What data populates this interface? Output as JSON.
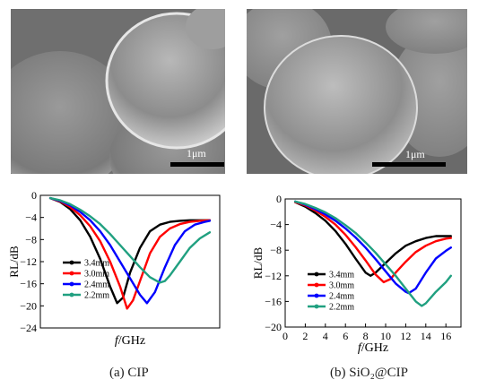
{
  "panels": [
    {
      "caption": "(a) CIP",
      "scale_label": "1μm"
    },
    {
      "caption": "(b) SiO₂@CIP",
      "scale_label": "1μm"
    }
  ],
  "chart_data": [
    {
      "type": "line",
      "title": "",
      "xlabel": "f/GHz",
      "ylabel": "RL/dB",
      "xlim": [
        0,
        18
      ],
      "ylim": [
        -24,
        0
      ],
      "xticks": [],
      "yticks": [
        0,
        -4,
        -8,
        -12,
        -16,
        -20,
        -24
      ],
      "grid": false,
      "legend_position": "lower-left",
      "series": [
        {
          "name": "3.4mm",
          "color": "#000000",
          "x": [
            1,
            2,
            3,
            4,
            5,
            6,
            7,
            7.7,
            8.3,
            9,
            10,
            11,
            12,
            13,
            14,
            15,
            16,
            17
          ],
          "y": [
            -0.5,
            -1.2,
            -2.5,
            -4.5,
            -7.5,
            -11.5,
            -16.5,
            -19.5,
            -18.5,
            -14,
            -9.5,
            -6.5,
            -5.3,
            -4.8,
            -4.6,
            -4.5,
            -4.5,
            -4.5
          ]
        },
        {
          "name": "3.0mm",
          "color": "#ff0000",
          "x": [
            1,
            2,
            3,
            4,
            5,
            6,
            7,
            8,
            8.7,
            9.3,
            10,
            11,
            12,
            13,
            14,
            15,
            16,
            17
          ],
          "y": [
            -0.5,
            -1.1,
            -2.1,
            -3.6,
            -5.6,
            -8.3,
            -12,
            -16.5,
            -20.5,
            -19,
            -15.5,
            -10.5,
            -7.5,
            -6,
            -5.2,
            -4.8,
            -4.6,
            -4.5
          ]
        },
        {
          "name": "2.4mm",
          "color": "#0000ff",
          "x": [
            1,
            2,
            3,
            4,
            5,
            6,
            7,
            8,
            9,
            10,
            10.7,
            11.5,
            12.5,
            13.5,
            14.5,
            15.5,
            16.5,
            17
          ],
          "y": [
            -0.5,
            -1,
            -1.8,
            -3,
            -4.5,
            -6.5,
            -9,
            -12,
            -15,
            -18,
            -19.5,
            -17.5,
            -13,
            -9,
            -6.5,
            -5.3,
            -4.8,
            -4.6
          ]
        },
        {
          "name": "2.2mm",
          "color": "#20a080",
          "x": [
            1,
            2,
            3,
            4,
            5,
            6,
            7,
            8,
            9,
            10,
            11,
            12,
            12.5,
            13,
            14,
            15,
            16,
            17
          ],
          "y": [
            -0.5,
            -0.9,
            -1.6,
            -2.6,
            -3.8,
            -5.2,
            -7,
            -9,
            -11,
            -13,
            -14.8,
            -15.8,
            -15.5,
            -14.5,
            -12,
            -9.5,
            -7.8,
            -6.7
          ]
        }
      ]
    },
    {
      "type": "line",
      "title": "",
      "xlabel": "f/GHz",
      "ylabel": "RL/dB",
      "xlim": [
        0,
        17.5
      ],
      "ylim": [
        -20,
        0
      ],
      "xticks": [
        0,
        2,
        4,
        6,
        8,
        10,
        12,
        14,
        16
      ],
      "yticks": [
        0,
        -4,
        -8,
        -12,
        -16,
        -20
      ],
      "grid": false,
      "legend_position": "lower-left",
      "series": [
        {
          "name": "3.4mm",
          "color": "#000000",
          "x": [
            1,
            2,
            3,
            4,
            5,
            6,
            7,
            8,
            8.5,
            9,
            10,
            11,
            12,
            13,
            14,
            15,
            16,
            16.5
          ],
          "y": [
            -0.5,
            -1.2,
            -2.2,
            -3.4,
            -5,
            -7,
            -9.3,
            -11.5,
            -12,
            -11.5,
            -10,
            -8.5,
            -7.3,
            -6.6,
            -6.1,
            -5.8,
            -5.8,
            -5.8
          ]
        },
        {
          "name": "3.0mm",
          "color": "#ff0000",
          "x": [
            1,
            2,
            3,
            4,
            5,
            6,
            7,
            8,
            9,
            9.8,
            10.5,
            11,
            12,
            13,
            14,
            15,
            16,
            16.5
          ],
          "y": [
            -0.5,
            -1,
            -1.8,
            -2.8,
            -4,
            -5.6,
            -7.5,
            -9.6,
            -11.8,
            -13,
            -12.5,
            -11.5,
            -9.8,
            -8.3,
            -7.3,
            -6.6,
            -6.2,
            -6.1
          ]
        },
        {
          "name": "2.4mm",
          "color": "#0000ff",
          "x": [
            1,
            2,
            3,
            4,
            5,
            6,
            7,
            8,
            9,
            10,
            11,
            12,
            12.3,
            13,
            14,
            15,
            16,
            16.5
          ],
          "y": [
            -0.4,
            -0.9,
            -1.6,
            -2.4,
            -3.4,
            -4.6,
            -6,
            -7.6,
            -9.4,
            -11.3,
            -13.2,
            -14.5,
            -14.7,
            -14,
            -11.5,
            -9.3,
            -8.1,
            -7.6
          ]
        },
        {
          "name": "2.2mm",
          "color": "#20a080",
          "x": [
            1,
            2,
            3,
            4,
            5,
            6,
            7,
            8,
            9,
            10,
            11,
            12,
            13,
            13.6,
            14,
            15,
            16,
            16.5
          ],
          "y": [
            -0.4,
            -0.8,
            -1.4,
            -2.1,
            -3,
            -4.1,
            -5.3,
            -6.8,
            -8.4,
            -10.2,
            -12,
            -14,
            -16,
            -16.7,
            -16.3,
            -14.5,
            -13,
            -12
          ]
        }
      ]
    }
  ]
}
